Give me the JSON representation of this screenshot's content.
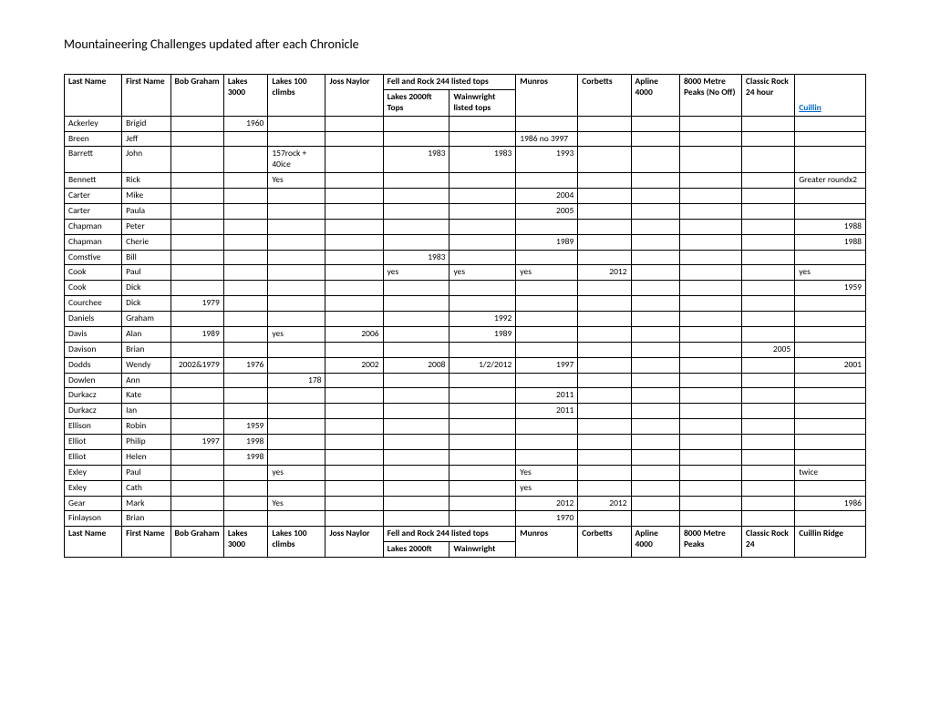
{
  "title": "Mountaineering Challenges updated after each Chronicle",
  "header": {
    "top": [
      "Last Name",
      "First Name",
      "Bob Graham",
      "Lakes 3000",
      "Lakes 100 climbs",
      "Joss Naylor",
      "Fell and Rock 244 listed tops",
      "Munros",
      "Corbetts",
      "Apline 4000",
      "8000 Metre Peaks (No Off)",
      "Classic Rock 24 hour",
      ""
    ],
    "sub_left": "Lakes 2000ft Tops",
    "sub_right": "Wainwright listed tops",
    "cuillin": "Cuillin"
  },
  "rows": [
    {
      "last": "Ackerley",
      "first": "Brigid",
      "bob": "",
      "l3000": "1960",
      "l100": "",
      "joss": "",
      "fr1": "",
      "fr2": "",
      "munros": "",
      "corbetts": "",
      "alp": "",
      "m8000": "",
      "classic": "",
      "cuillin": ""
    },
    {
      "last": "Breen",
      "first": "Jeff",
      "bob": "",
      "l3000": "",
      "l100": "",
      "joss": "",
      "fr1": "",
      "fr2": "",
      "munros": "1986 no 3997",
      "corbetts": "",
      "alp": "",
      "m8000": "",
      "classic": "",
      "cuillin": ""
    },
    {
      "last": "Barrett",
      "first": "John",
      "bob": "",
      "l3000": "",
      "l100": "157rock + 40ice",
      "joss": "",
      "fr1": "1983",
      "fr2": "1983",
      "munros": "1993",
      "corbetts": "",
      "alp": "",
      "m8000": "",
      "classic": "",
      "cuillin": ""
    },
    {
      "last": "Bennett",
      "first": "Rick",
      "bob": "",
      "l3000": "",
      "l100": "Yes",
      "joss": "",
      "fr1": "",
      "fr2": "",
      "munros": "",
      "corbetts": "",
      "alp": "",
      "m8000": "",
      "classic": "",
      "cuillin": "Greater roundx2"
    },
    {
      "last": "Carter",
      "first": "Mike",
      "bob": "",
      "l3000": "",
      "l100": "",
      "joss": "",
      "fr1": "",
      "fr2": "",
      "munros": "2004",
      "corbetts": "",
      "alp": "",
      "m8000": "",
      "classic": "",
      "cuillin": ""
    },
    {
      "last": "Carter",
      "first": "Paula",
      "bob": "",
      "l3000": "",
      "l100": "",
      "joss": "",
      "fr1": "",
      "fr2": "",
      "munros": "2005",
      "corbetts": "",
      "alp": "",
      "m8000": "",
      "classic": "",
      "cuillin": ""
    },
    {
      "last": "Chapman",
      "first": "Peter",
      "bob": "",
      "l3000": "",
      "l100": "",
      "joss": "",
      "fr1": "",
      "fr2": "",
      "munros": "",
      "corbetts": "",
      "alp": "",
      "m8000": "",
      "classic": "",
      "cuillin": "1988"
    },
    {
      "last": "Chapman",
      "first": "Cherie",
      "bob": "",
      "l3000": "",
      "l100": "",
      "joss": "",
      "fr1": "",
      "fr2": "",
      "munros": "1989",
      "corbetts": "",
      "alp": "",
      "m8000": "",
      "classic": "",
      "cuillin": "1988"
    },
    {
      "last": "Comstive",
      "first": "Bill",
      "bob": "",
      "l3000": "",
      "l100": "",
      "joss": "",
      "fr1": "1983",
      "fr2": "",
      "munros": "",
      "corbetts": "",
      "alp": "",
      "m8000": "",
      "classic": "",
      "cuillin": ""
    },
    {
      "last": "Cook",
      "first": "Paul",
      "bob": "",
      "l3000": "",
      "l100": "",
      "joss": "",
      "fr1": "yes",
      "fr2": "yes",
      "munros": "yes",
      "corbetts": "2012",
      "alp": "",
      "m8000": "",
      "classic": "",
      "cuillin": "yes"
    },
    {
      "last": "Cook",
      "first": "Dick",
      "bob": "",
      "l3000": "",
      "l100": "",
      "joss": "",
      "fr1": "",
      "fr2": "",
      "munros": "",
      "corbetts": "",
      "alp": "",
      "m8000": "",
      "classic": "",
      "cuillin": "1959"
    },
    {
      "last": "Courchee",
      "first": "Dick",
      "bob": "1979",
      "l3000": "",
      "l100": "",
      "joss": "",
      "fr1": "",
      "fr2": "",
      "munros": "",
      "corbetts": "",
      "alp": "",
      "m8000": "",
      "classic": "",
      "cuillin": ""
    },
    {
      "last": "Daniels",
      "first": "Graham",
      "bob": "",
      "l3000": "",
      "l100": "",
      "joss": "",
      "fr1": "",
      "fr2": "1992",
      "munros": "",
      "corbetts": "",
      "alp": "",
      "m8000": "",
      "classic": "",
      "cuillin": ""
    },
    {
      "last": "Davis",
      "first": "Alan",
      "bob": "1989",
      "l3000": "",
      "l100": "yes",
      "joss": "2006",
      "fr1": "",
      "fr2": "1989",
      "munros": "",
      "corbetts": "",
      "alp": "",
      "m8000": "",
      "classic": "",
      "cuillin": ""
    },
    {
      "last": "Davison",
      "first": "Brian",
      "bob": "",
      "l3000": "",
      "l100": "",
      "joss": "",
      "fr1": "",
      "fr2": "",
      "munros": "",
      "corbetts": "",
      "alp": "",
      "m8000": "",
      "classic": "2005",
      "cuillin": ""
    },
    {
      "last": "Dodds",
      "first": "Wendy",
      "bob": "2002&1979",
      "l3000": "1976",
      "l100": "",
      "joss": "2002",
      "fr1": "2008",
      "fr2": "1/2/2012",
      "munros": "1997",
      "corbetts": "",
      "alp": "",
      "m8000": "",
      "classic": "",
      "cuillin": "2001"
    },
    {
      "last": "Dowlen",
      "first": "Ann",
      "bob": "",
      "l3000": "",
      "l100": "178",
      "joss": "",
      "fr1": "",
      "fr2": "",
      "munros": "",
      "corbetts": "",
      "alp": "",
      "m8000": "",
      "classic": "",
      "cuillin": ""
    },
    {
      "last": "Durkacz",
      "first": "Kate",
      "bob": "",
      "l3000": "",
      "l100": "",
      "joss": "",
      "fr1": "",
      "fr2": "",
      "munros": "2011",
      "corbetts": "",
      "alp": "",
      "m8000": "",
      "classic": "",
      "cuillin": ""
    },
    {
      "last": "Durkacz",
      "first": "Ian",
      "bob": "",
      "l3000": "",
      "l100": "",
      "joss": "",
      "fr1": "",
      "fr2": "",
      "munros": "2011",
      "corbetts": "",
      "alp": "",
      "m8000": "",
      "classic": "",
      "cuillin": ""
    },
    {
      "last": "Ellison",
      "first": "Robin",
      "bob": "",
      "l3000": "1959",
      "l100": "",
      "joss": "",
      "fr1": "",
      "fr2": "",
      "munros": "",
      "corbetts": "",
      "alp": "",
      "m8000": "",
      "classic": "",
      "cuillin": ""
    },
    {
      "last": "Elliot",
      "first": "Philip",
      "bob": "1997",
      "l3000": "1998",
      "l100": "",
      "joss": "",
      "fr1": "",
      "fr2": "",
      "munros": "",
      "corbetts": "",
      "alp": "",
      "m8000": "",
      "classic": "",
      "cuillin": ""
    },
    {
      "last": "Elliot",
      "first": "Helen",
      "bob": "",
      "l3000": "1998",
      "l100": "",
      "joss": "",
      "fr1": "",
      "fr2": "",
      "munros": "",
      "corbetts": "",
      "alp": "",
      "m8000": "",
      "classic": "",
      "cuillin": ""
    },
    {
      "last": "Exley",
      "first": "Paul",
      "bob": "",
      "l3000": "",
      "l100": "yes",
      "joss": "",
      "fr1": "",
      "fr2": "",
      "munros": "Yes",
      "corbetts": "",
      "alp": "",
      "m8000": "",
      "classic": "",
      "cuillin": "twice"
    },
    {
      "last": "Exley",
      "first": "Cath",
      "bob": "",
      "l3000": "",
      "l100": "",
      "joss": "",
      "fr1": "",
      "fr2": "",
      "munros": "yes",
      "corbetts": "",
      "alp": "",
      "m8000": "",
      "classic": "",
      "cuillin": ""
    },
    {
      "last": "Gear",
      "first": "Mark",
      "bob": "",
      "l3000": "",
      "l100": "Yes",
      "joss": "",
      "fr1": "",
      "fr2": "",
      "munros": "2012",
      "corbetts": "2012",
      "alp": "",
      "m8000": "",
      "classic": "",
      "cuillin": "1986"
    },
    {
      "last": "Finlayson",
      "first": "Brian",
      "bob": "",
      "l3000": "",
      "l100": "",
      "joss": "",
      "fr1": "",
      "fr2": "",
      "munros": "1970",
      "corbetts": "",
      "alp": "",
      "m8000": "",
      "classic": "",
      "cuillin": ""
    }
  ],
  "footer": {
    "top": [
      "Last Name",
      "First Name",
      "Bob Graham",
      "Lakes 3000",
      "Lakes 100 climbs",
      "Joss Naylor",
      "Fell and Rock 244 listed tops",
      "Munros",
      "Corbetts",
      "Apline 4000",
      "8000 Metre Peaks",
      "Classic Rock 24",
      "Cuillin Ridge"
    ],
    "sub_left": "Lakes 2000ft",
    "sub_right": "Wainwright"
  },
  "right_cols": {
    "l3000": true,
    "l100_178": "right",
    "fr1": true,
    "fr2": true,
    "munros": true,
    "bob": true,
    "joss": true,
    "cuillin": true
  }
}
